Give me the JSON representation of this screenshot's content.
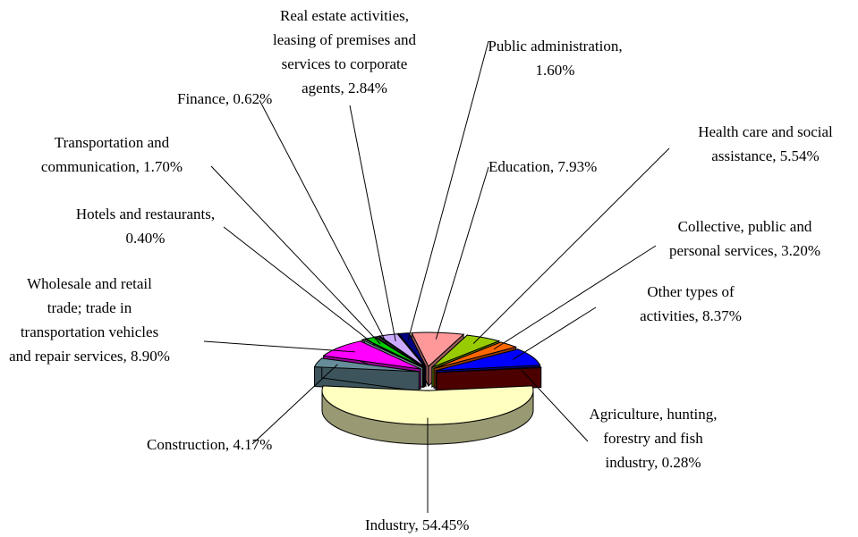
{
  "chart_data": {
    "type": "pie",
    "categories": [
      "Industry",
      "Construction",
      "Wholesale and retail trade; trade in transportation vehicles and repair services",
      "Hotels and restaurants",
      "Transportation and communication",
      "Finance",
      "Real estate activities, leasing of premises and services to corporate agents",
      "Public administration",
      "Education",
      "Health care and social assistance",
      "Collective, public and personal services",
      "Other types of activities",
      "Agriculture, hunting, forestry and fish industry"
    ],
    "values": [
      54.45,
      4.17,
      8.9,
      0.4,
      1.7,
      0.62,
      2.84,
      1.6,
      7.93,
      5.54,
      3.2,
      8.37,
      0.28
    ],
    "value_labels": [
      "Industry, 54.45%",
      "Construction, 4.17%",
      "Wholesale and retail trade; trade in transportation vehicles and repair services, 8.90%",
      "Hotels and restaurants, 0.40%",
      "Transportation and communication, 1.70%",
      "Finance, 0.62%",
      "Real estate activities, leasing of premises and services to corporate agents, 2.84%",
      "Public administration, 1.60%",
      "Education, 7.93%",
      "Health care and social assistance, 5.54%",
      "Collective, public and personal services, 3.20%",
      "Other types of activities, 8.37%",
      "Agriculture, hunting, forestry and fish industry, 0.28%"
    ],
    "colors": [
      "#ffffc0",
      "#668c99",
      "#ff00ff",
      "#ccffff",
      "#00cc00",
      "#333333",
      "#ccaaff",
      "#000080",
      "#ff9999",
      "#99cc00",
      "#ff6600",
      "#0000ff",
      "#800000"
    ]
  }
}
